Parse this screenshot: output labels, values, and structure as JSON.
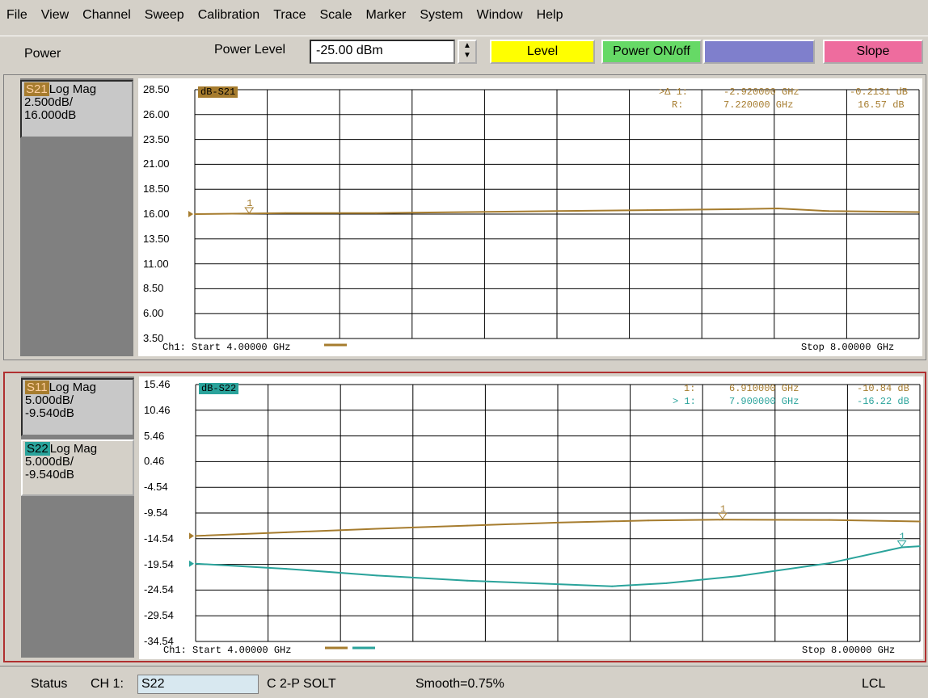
{
  "menu": [
    "File",
    "View",
    "Channel",
    "Sweep",
    "Calibration",
    "Trace",
    "Scale",
    "Marker",
    "System",
    "Window",
    "Help"
  ],
  "toolbar": {
    "label_left": "Power",
    "power_level_label": "Power Level",
    "power_level_value": "-25.00 dBm",
    "softkeys": [
      {
        "label": "Level",
        "color": "#ffff00"
      },
      {
        "label": "Power ON/off",
        "color": "#66d966"
      },
      {
        "label": "",
        "color": "#7f7fcc"
      },
      {
        "label": "Slope",
        "color": "#ee6c9e"
      }
    ]
  },
  "windows": [
    {
      "traces": [
        {
          "param": "S21",
          "format": "Log Mag",
          "scale": "2.500dB/",
          "ref": "16.000dB",
          "color": "#a67c2e"
        }
      ],
      "y_ticks": [
        "28.50",
        "26.00",
        "23.50",
        "21.00",
        "18.50",
        "16.00",
        "13.50",
        "11.00",
        "8.50",
        "6.00",
        "3.50"
      ],
      "trace_label": "dB-S21",
      "trace_label_color": "#a67c2e",
      "markers": [
        {
          "name": ">Δ 1:",
          "freq": "-2.920000 GHz",
          "value": "-0.2131 dB",
          "color": "#a67c2e"
        },
        {
          "name": "R:",
          "freq": "7.220000 GHz",
          "value": "16.57 dB",
          "color": "#a67c2e"
        }
      ],
      "start": "Ch1: Start  4.00000 GHz",
      "stop": "Stop  8.00000 GHz"
    },
    {
      "traces": [
        {
          "param": "S11",
          "format": "Log Mag",
          "scale": "5.000dB/",
          "ref": "-9.540dB",
          "color": "#a67c2e"
        },
        {
          "param": "S22",
          "format": "Log Mag",
          "scale": "5.000dB/",
          "ref": "-9.540dB",
          "color": "#2aa39b"
        }
      ],
      "y_ticks": [
        "15.46",
        "10.46",
        "5.46",
        "0.46",
        "-4.54",
        "-9.54",
        "-14.54",
        "-19.54",
        "-24.54",
        "-29.54",
        "-34.54"
      ],
      "trace_label": "dB-S22",
      "trace_label_color": "#2aa39b",
      "markers": [
        {
          "name": "1:",
          "freq": "6.910000 GHz",
          "value": "-10.84 dB",
          "color": "#a67c2e"
        },
        {
          "name": "> 1:",
          "freq": "7.900000 GHz",
          "value": "-16.22 dB",
          "color": "#2aa39b"
        }
      ],
      "start": "Ch1: Start  4.00000 GHz",
      "stop": "Stop  8.00000 GHz"
    }
  ],
  "chart_data": [
    {
      "type": "line",
      "x_range": [
        4.0,
        8.0
      ],
      "ylim": [
        3.5,
        28.5
      ],
      "series": [
        {
          "name": "S21",
          "x": [
            4.0,
            4.5,
            5.0,
            5.5,
            6.0,
            6.5,
            7.0,
            7.22,
            7.5,
            8.0
          ],
          "y": [
            16.0,
            16.1,
            16.1,
            16.2,
            16.3,
            16.4,
            16.5,
            16.57,
            16.3,
            16.2
          ]
        }
      ]
    },
    {
      "type": "line",
      "x_range": [
        4.0,
        8.0
      ],
      "ylim": [
        -34.54,
        15.46
      ],
      "series": [
        {
          "name": "S11",
          "x": [
            4.0,
            4.5,
            5.0,
            5.5,
            6.0,
            6.5,
            6.91,
            7.5,
            8.0
          ],
          "y": [
            -14.0,
            -13.3,
            -12.6,
            -12.0,
            -11.4,
            -11.0,
            -10.84,
            -10.9,
            -11.2
          ]
        },
        {
          "name": "S22",
          "x": [
            4.0,
            4.5,
            5.0,
            5.5,
            6.0,
            6.3,
            6.6,
            7.0,
            7.5,
            7.9,
            8.0
          ],
          "y": [
            -19.4,
            -20.4,
            -21.7,
            -22.7,
            -23.4,
            -23.8,
            -23.2,
            -21.8,
            -19.3,
            -16.22,
            -16.0
          ]
        }
      ]
    }
  ],
  "status": {
    "label": "Status",
    "ch": "CH 1:",
    "ch_value": "S22",
    "cal": "C  2-P SOLT",
    "smooth": "Smooth=0.75%",
    "mode": "LCL"
  }
}
